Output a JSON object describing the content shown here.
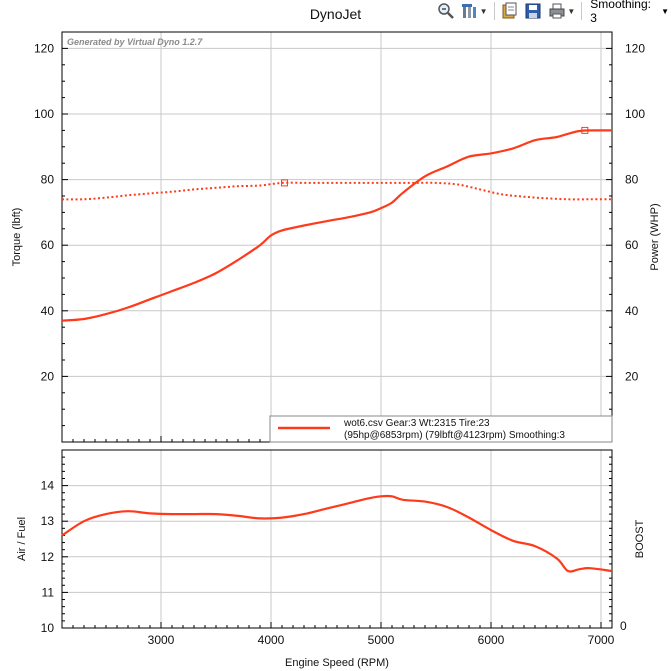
{
  "title": "DynoJet",
  "toolbar": {
    "icons": [
      "zoom-icon",
      "settings-icon",
      "copy-icon",
      "save-icon",
      "print-icon"
    ],
    "smoothing_label": "Smoothing: 3"
  },
  "colors": {
    "series": "#ff3a1a",
    "grid": "#c8c8c8",
    "axis": "#000000",
    "watermark": "#8a8a8a"
  },
  "chart_data": [
    {
      "type": "line",
      "watermark": "Generated by Virtual Dyno 1.2.7",
      "xlim": [
        2100,
        7100
      ],
      "ylim": [
        0,
        125
      ],
      "y_ticks": [
        20,
        40,
        60,
        80,
        100,
        120
      ],
      "ylabel_left": "Torque (lbft)",
      "ylabel_right": "Power (WHP)",
      "grid": true,
      "legend": {
        "placement": "bottom-right",
        "line1": "wot6.csv Gear:3 Wt:2315 Tire:23",
        "line2": "(95hp@6853rpm) (79lbft@4123rpm) Smoothing:3"
      },
      "series": [
        {
          "name": "Power",
          "style": "solid",
          "x": [
            2100,
            2300,
            2500,
            2700,
            2900,
            3100,
            3300,
            3500,
            3700,
            3900,
            4000,
            4100,
            4300,
            4500,
            4700,
            4900,
            5000,
            5100,
            5200,
            5400,
            5600,
            5800,
            6000,
            6200,
            6400,
            6600,
            6800,
            7000,
            7100
          ],
          "values": [
            37,
            37.5,
            39,
            41,
            43.5,
            46,
            48.5,
            51.5,
            55.5,
            60,
            63,
            64.5,
            66,
            67.3,
            68.5,
            70,
            71.3,
            73,
            76,
            81,
            84,
            87,
            88,
            89.5,
            92,
            93,
            94.8,
            95,
            95
          ],
          "marker": {
            "x": 6853,
            "y": 95
          }
        },
        {
          "name": "Torque",
          "style": "dotted",
          "x": [
            2100,
            2300,
            2500,
            2700,
            2900,
            3100,
            3300,
            3500,
            3700,
            3900,
            4100,
            4300,
            4500,
            4700,
            4900,
            5100,
            5300,
            5500,
            5700,
            5900,
            6100,
            6300,
            6500,
            6700,
            6900,
            7100
          ],
          "values": [
            74,
            74,
            74.5,
            75.2,
            75.8,
            76.3,
            77,
            77.5,
            78,
            78.2,
            79,
            79,
            79,
            79,
            79,
            79,
            79,
            79,
            78.5,
            77,
            75.5,
            74.8,
            74.3,
            74,
            74,
            74
          ],
          "marker": {
            "x": 4123,
            "y": 79
          }
        }
      ]
    },
    {
      "type": "line",
      "xlim": [
        2100,
        7100
      ],
      "ylim": [
        10,
        15
      ],
      "x_ticks": [
        3000,
        4000,
        5000,
        6000,
        7000
      ],
      "y_ticks": [
        10,
        11,
        12,
        13,
        14
      ],
      "right_ticks": [
        "0"
      ],
      "ylabel_left": "Air / Fuel",
      "ylabel_right": "BOOST",
      "xlabel": "Engine Speed (RPM)",
      "grid": true,
      "series": [
        {
          "name": "Air / Fuel",
          "style": "solid",
          "x": [
            2100,
            2300,
            2500,
            2700,
            2900,
            3100,
            3300,
            3500,
            3700,
            3900,
            4100,
            4300,
            4500,
            4700,
            4900,
            5000,
            5100,
            5200,
            5400,
            5600,
            5800,
            6000,
            6200,
            6400,
            6600,
            6700,
            6800,
            6900,
            7100
          ],
          "values": [
            12.6,
            13.0,
            13.2,
            13.28,
            13.22,
            13.2,
            13.2,
            13.2,
            13.15,
            13.08,
            13.1,
            13.2,
            13.35,
            13.5,
            13.65,
            13.7,
            13.7,
            13.6,
            13.55,
            13.4,
            13.1,
            12.75,
            12.45,
            12.3,
            11.95,
            11.6,
            11.65,
            11.68,
            11.6
          ]
        }
      ]
    }
  ]
}
